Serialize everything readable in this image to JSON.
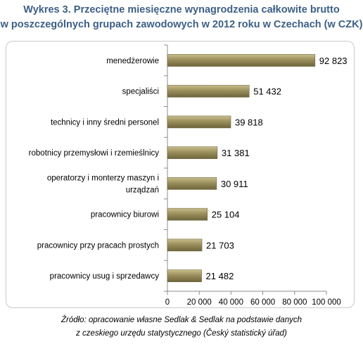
{
  "title": {
    "line1": "Wykres 3. Przeciętne miesięczne wynagrodzenia całkowite brutto",
    "line2": "w poszczególnych grupach zawodowych w 2012 roku w Czechach (w CZK)"
  },
  "source": {
    "line1": "Źródło: opracowanie własne Sedlak & Sedlak na podstawie danych",
    "line2": "z czeskiego urzędu statystycznego (Český statistický úřad)"
  },
  "colors": {
    "bar_fill": "#9b8f5c",
    "bar_edge": "#6e653c",
    "title": "#3c5f86"
  },
  "chart_data": {
    "type": "bar",
    "orientation": "horizontal",
    "categories": [
      [
        "menedżerowie"
      ],
      [
        "specjaliści"
      ],
      [
        "technicy i inny średni personel"
      ],
      [
        "robotnicy przemysłowi i rzemieślnicy"
      ],
      [
        "operatorzy i monterzy maszyn i",
        "urządzań"
      ],
      [
        "pracownicy biurowi"
      ],
      [
        "pracownicy przy pracach prostych"
      ],
      [
        "pracownicy usug i sprzedawcy"
      ]
    ],
    "values": [
      92823,
      51432,
      39818,
      31381,
      30911,
      25104,
      21703,
      21482
    ],
    "value_labels": [
      "92 823",
      "51 432",
      "39 818",
      "31 381",
      "30 911",
      "25 104",
      "21 703",
      "21 482"
    ],
    "xlim": [
      0,
      100000
    ],
    "xticks": [
      0,
      20000,
      40000,
      60000,
      80000,
      100000
    ],
    "xtick_labels": [
      "0",
      "20 000",
      "40 000",
      "60 000",
      "80 000",
      "100 000"
    ],
    "grid": false,
    "legend": "none"
  }
}
